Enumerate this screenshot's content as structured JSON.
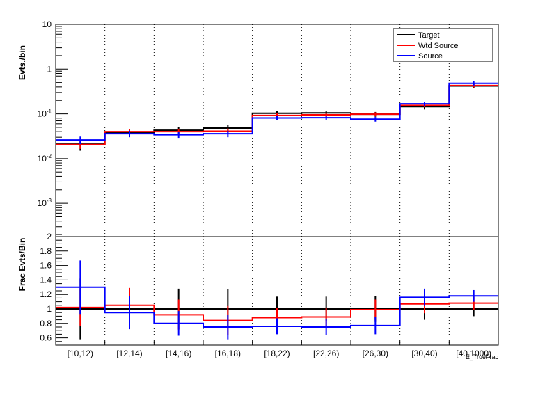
{
  "chart_data": {
    "type": "line",
    "categories": [
      "[10,12)",
      "[12,14)",
      "[14,16)",
      "[16,18)",
      "[18,22)",
      "[22,26)",
      "[26,30)",
      "[30,40)",
      "[40,1000)"
    ],
    "x_axis_title": "E_TrueFrac",
    "legend": {
      "placement": "top-right",
      "entries": [
        {
          "label": "Target",
          "color": "#000000"
        },
        {
          "label": "Wtd Source",
          "color": "#ff0000"
        },
        {
          "label": "Source",
          "color": "#0000ff"
        }
      ]
    },
    "top_panel": {
      "ylabel": "Evts./bin",
      "yscale": "log",
      "ylim": [
        0.00018,
        10
      ],
      "ytick_labels": [
        {
          "value": 10,
          "label": "10"
        },
        {
          "value": 1,
          "label": "1"
        },
        {
          "value": 0.1,
          "base": "10",
          "exp": "-1"
        },
        {
          "value": 0.01,
          "base": "10",
          "exp": "-2"
        },
        {
          "value": 0.001,
          "base": "10",
          "exp": "-3"
        }
      ],
      "series": [
        {
          "name": "Target",
          "color": "#000000",
          "values": [
            0.021,
            0.038,
            0.043,
            0.048,
            0.103,
            0.105,
            0.098,
            0.145,
            0.42
          ],
          "err": [
            0.006,
            0.007,
            0.008,
            0.009,
            0.012,
            0.012,
            0.012,
            0.02,
            0.04
          ]
        },
        {
          "name": "Wtd Source",
          "color": "#ff0000",
          "values": [
            0.0205,
            0.04,
            0.04,
            0.041,
            0.092,
            0.095,
            0.098,
            0.155,
            0.43
          ],
          "err": [
            0.004,
            0.006,
            0.006,
            0.006,
            0.01,
            0.01,
            0.01,
            0.015,
            0.04
          ]
        },
        {
          "name": "Source",
          "color": "#0000ff",
          "values": [
            0.026,
            0.036,
            0.034,
            0.036,
            0.081,
            0.082,
            0.076,
            0.168,
            0.48
          ],
          "err": [
            0.005,
            0.006,
            0.006,
            0.006,
            0.009,
            0.009,
            0.009,
            0.018,
            0.05
          ]
        }
      ]
    },
    "bottom_panel": {
      "ylabel": "Frac Evts/Bin",
      "ylim": [
        0.5,
        2.0
      ],
      "ytick_labels": [
        "0.6",
        "0.8",
        "1",
        "1.2",
        "1.4",
        "1.6",
        "1.8",
        "2"
      ],
      "series": [
        {
          "name": "Target",
          "color": "#000000",
          "values": [
            1,
            1,
            1,
            1,
            1,
            1,
            1,
            1,
            1
          ],
          "err": [
            0.42,
            0.26,
            0.28,
            0.27,
            0.17,
            0.17,
            0.18,
            0.15,
            0.1
          ]
        },
        {
          "name": "Wtd Source",
          "color": "#ff0000",
          "values": [
            1.02,
            1.05,
            0.92,
            0.84,
            0.88,
            0.89,
            0.99,
            1.07,
            1.08
          ],
          "err": [
            0.26,
            0.24,
            0.21,
            0.2,
            0.13,
            0.13,
            0.14,
            0.13,
            0.09
          ]
        },
        {
          "name": "Source",
          "color": "#0000ff",
          "values": [
            1.3,
            0.95,
            0.8,
            0.75,
            0.76,
            0.75,
            0.77,
            1.16,
            1.18
          ],
          "err": [
            0.37,
            0.23,
            0.17,
            0.17,
            0.11,
            0.11,
            0.12,
            0.12,
            0.08
          ]
        }
      ]
    },
    "vertical_dotted_lines_at_bin_edges": true
  }
}
